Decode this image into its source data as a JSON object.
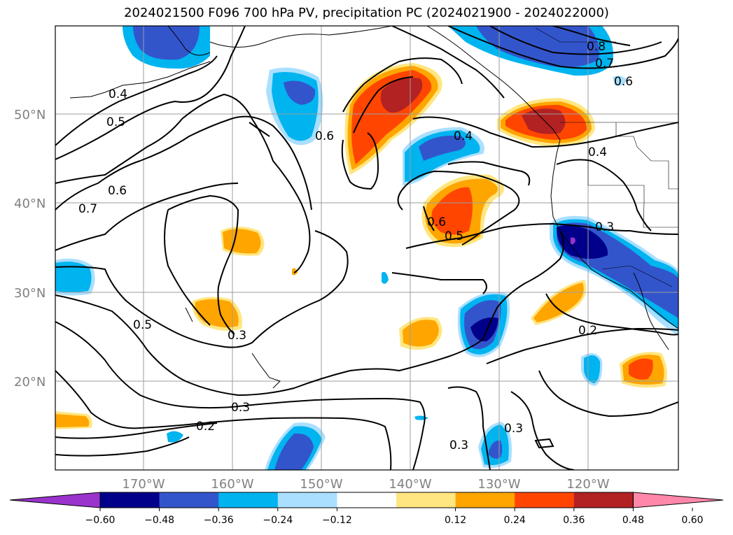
{
  "title": "2024021500 F096 700 hPa PV, precipitation PC (2024021900 - 2024022000)",
  "map": {
    "lat_labels": [
      "50°N",
      "40°N",
      "30°N",
      "20°N"
    ],
    "lon_labels": [
      "170°W",
      "160°W",
      "150°W",
      "140°W",
      "130°W",
      "120°W"
    ],
    "contour_labels": [
      "0.8",
      "0.7",
      "0.6",
      "0.4",
      "0.4",
      "0.5",
      "0.6",
      "0.7",
      "0.6",
      "0.4",
      "0.6",
      "0.5",
      "0.3",
      "0.3",
      "0.5",
      "0.3",
      "0.2",
      "0.2",
      "0.3",
      "0.3"
    ]
  },
  "colorbar": {
    "colors": [
      "#9933cc",
      "#00008b",
      "#3355cc",
      "#00b4f0",
      "#aadfff",
      "#ffffff",
      "#ffe680",
      "#ffa500",
      "#ff4500",
      "#b22222",
      "#ff88aa"
    ],
    "ticks": [
      "−0.60",
      "−0.48",
      "−0.36",
      "−0.24",
      "−0.12",
      "0.12",
      "0.24",
      "0.36",
      "0.48",
      "0.60"
    ]
  }
}
